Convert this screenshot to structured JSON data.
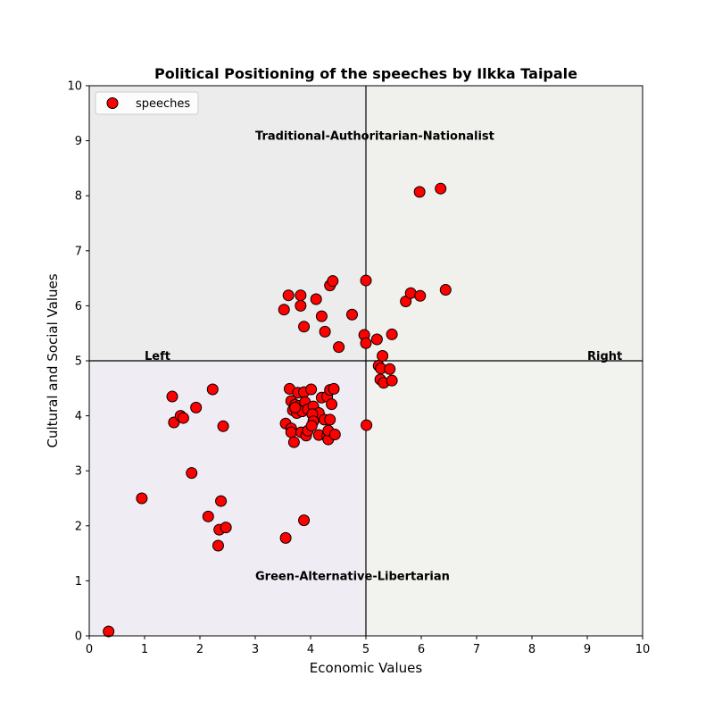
{
  "chart_data": {
    "type": "scatter",
    "title": "Political Positioning of the speeches by Ilkka Taipale",
    "xlabel": "Economic Values",
    "ylabel": "Cultural and Social Values",
    "xlim": [
      0,
      10
    ],
    "ylim": [
      0,
      10
    ],
    "xticks": [
      0,
      1,
      2,
      3,
      4,
      5,
      6,
      7,
      8,
      9,
      10
    ],
    "yticks": [
      0,
      1,
      2,
      3,
      4,
      5,
      6,
      7,
      8,
      9,
      10
    ],
    "grid": false,
    "legend_position": "top-left",
    "divider_x": 5,
    "divider_y": 5,
    "quadrant_colors": {
      "top_left": "#ececec",
      "top_right": "#f0f1ed",
      "bottom_left": "#efedf3",
      "bottom_right": "#f2f3ef"
    },
    "marker_color": "#ff0000",
    "marker_edge": "#000000",
    "annotations": [
      {
        "text": "Traditional-Authoritarian-Nationalist",
        "x": 3.0,
        "y": 9.0
      },
      {
        "text": "Green-Alternative-Libertarian",
        "x": 3.0,
        "y": 1.0
      },
      {
        "text": "Left",
        "x": 1.0,
        "y": 5.0
      },
      {
        "text": "Right",
        "x": 9.0,
        "y": 5.0
      }
    ],
    "series": [
      {
        "name": "speeches",
        "points": [
          [
            0.35,
            0.08
          ],
          [
            0.95,
            2.5
          ],
          [
            1.5,
            4.35
          ],
          [
            1.53,
            3.88
          ],
          [
            1.65,
            4.0
          ],
          [
            1.7,
            3.96
          ],
          [
            1.93,
            4.15
          ],
          [
            1.85,
            2.96
          ],
          [
            2.15,
            2.17
          ],
          [
            2.23,
            4.48
          ],
          [
            2.42,
            3.81
          ],
          [
            2.35,
            1.93
          ],
          [
            2.33,
            1.64
          ],
          [
            2.38,
            2.45
          ],
          [
            2.47,
            1.97
          ],
          [
            3.52,
            5.93
          ],
          [
            3.6,
            6.19
          ],
          [
            3.82,
            6.19
          ],
          [
            3.82,
            6.0
          ],
          [
            3.88,
            5.62
          ],
          [
            4.1,
            6.12
          ],
          [
            4.2,
            5.81
          ],
          [
            4.26,
            5.53
          ],
          [
            4.35,
            6.37
          ],
          [
            4.4,
            6.45
          ],
          [
            4.51,
            5.25
          ],
          [
            4.75,
            5.84
          ],
          [
            5.0,
            6.46
          ],
          [
            4.97,
            5.47
          ],
          [
            5.0,
            5.32
          ],
          [
            5.2,
            5.39
          ],
          [
            5.47,
            5.48
          ],
          [
            5.72,
            6.08
          ],
          [
            5.81,
            6.23
          ],
          [
            5.98,
            6.18
          ],
          [
            6.44,
            6.29
          ],
          [
            5.97,
            8.07
          ],
          [
            6.35,
            8.13
          ],
          [
            5.23,
            4.91
          ],
          [
            5.3,
            5.09
          ],
          [
            5.27,
            4.86
          ],
          [
            5.43,
            4.85
          ],
          [
            5.26,
            4.66
          ],
          [
            5.32,
            4.6
          ],
          [
            5.47,
            4.64
          ],
          [
            3.62,
            4.49
          ],
          [
            3.77,
            4.42
          ],
          [
            3.88,
            4.43
          ],
          [
            4.01,
            4.48
          ],
          [
            3.65,
            4.27
          ],
          [
            3.72,
            4.2
          ],
          [
            3.79,
            4.18
          ],
          [
            3.9,
            4.25
          ],
          [
            3.68,
            4.1
          ],
          [
            3.75,
            4.05
          ],
          [
            3.85,
            4.08
          ],
          [
            3.95,
            4.12
          ],
          [
            4.05,
            4.17
          ],
          [
            4.15,
            4.05
          ],
          [
            4.03,
            4.03
          ],
          [
            3.72,
            4.15
          ],
          [
            4.2,
            4.33
          ],
          [
            4.3,
            4.35
          ],
          [
            4.35,
            4.47
          ],
          [
            4.42,
            4.49
          ],
          [
            4.38,
            4.21
          ],
          [
            4.25,
            3.93
          ],
          [
            4.35,
            3.93
          ],
          [
            4.05,
            3.9
          ],
          [
            3.55,
            3.86
          ],
          [
            3.65,
            3.77
          ],
          [
            3.65,
            3.7
          ],
          [
            3.7,
            3.52
          ],
          [
            3.83,
            3.7
          ],
          [
            3.92,
            3.64
          ],
          [
            3.95,
            3.73
          ],
          [
            4.02,
            3.82
          ],
          [
            4.15,
            3.65
          ],
          [
            4.3,
            3.63
          ],
          [
            4.32,
            3.57
          ],
          [
            4.32,
            3.73
          ],
          [
            4.44,
            3.66
          ],
          [
            5.01,
            3.83
          ],
          [
            3.55,
            1.78
          ],
          [
            3.88,
            2.1
          ]
        ]
      }
    ]
  }
}
